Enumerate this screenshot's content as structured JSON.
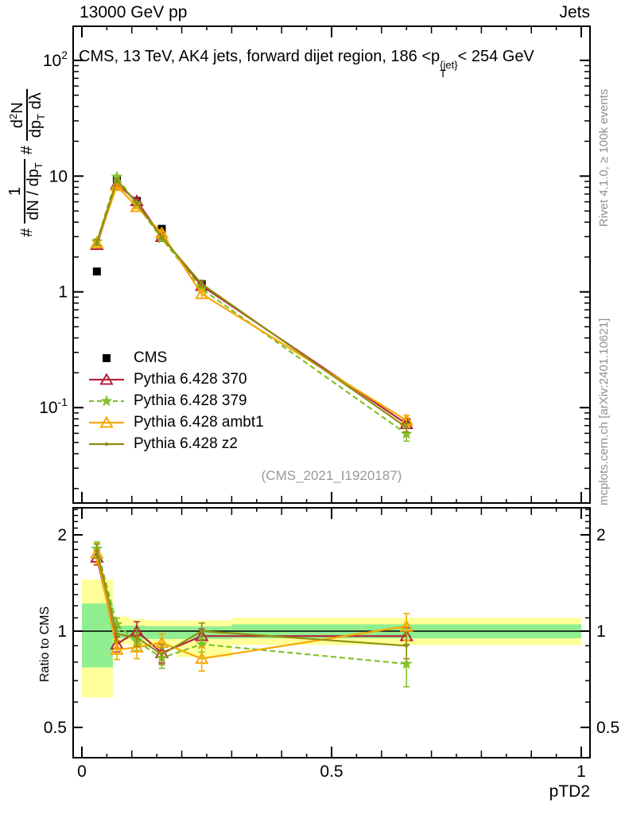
{
  "header": {
    "left": "13000 GeV pp",
    "right": "Jets"
  },
  "title": {
    "pre": "CMS, 13 TeV, AK4 jets, forward dijet region, 186 <",
    "p": "p",
    "sup": "{jet}",
    "sub": "T",
    "post": "< 254 GeV"
  },
  "ylabel_parts": {
    "h1": "#",
    "f1_num": "1",
    "f1_den": "dN / dp",
    "f1_den_sub": "T",
    "h2": "#",
    "f2_num_a": "d",
    "f2_num_sup": "2",
    "f2_num_b": "N",
    "f2_den_a": "dp",
    "f2_den_sub": "T",
    "f2_den_b": " dλ"
  },
  "side_texts": {
    "rivet": "Rivet 4.1.0, ≥ 100k events",
    "mcplots": "mcplots.cern.ch [arXiv:2401.10621]"
  },
  "watermark": "(CMS_2021_I1920187)",
  "ratio_ylabel": "Ratio to CMS",
  "xlabel": "pTD2",
  "chart_data": [
    {
      "id": "main",
      "type": "line",
      "title": "CMS, 13 TeV, AK4 jets, forward dijet region, 186 < pT^{jet} < 254 GeV",
      "xlabel": "pTD2",
      "ylabel": "# 1/(dN/dpT) # d^2N/(dpT dlambda)",
      "yscale": "log",
      "xlim": [
        -0.0175,
        1.0175
      ],
      "ylim": [
        0.015,
        197
      ],
      "grid": false,
      "legend_position": "center-left",
      "x": [
        0.03,
        0.07,
        0.11,
        0.16,
        0.24,
        0.65
      ],
      "series": [
        {
          "name": "CMS",
          "color": "#000000",
          "marker": "square",
          "line": "none",
          "values": [
            1.5,
            9.4,
            6.1,
            3.5,
            1.17,
            0.075
          ]
        },
        {
          "name": "Pythia 6.428 370",
          "color": "#b5233c",
          "marker": "triangle-open",
          "line": "solid",
          "values": [
            2.55,
            8.55,
            6.1,
            2.99,
            1.13,
            0.0724
          ],
          "yerr": [
            0.15,
            0.28,
            0.2,
            0.1,
            0.06,
            0.006
          ]
        },
        {
          "name": "Pythia 6.428 379",
          "color": "#82c22c",
          "marker": "star",
          "line": "dashed",
          "values": [
            2.72,
            9.87,
            5.67,
            2.89,
            1.06,
            0.0593
          ],
          "yerr": [
            0.15,
            0.3,
            0.2,
            0.1,
            0.06,
            0.008
          ]
        },
        {
          "name": "Pythia 6.428 ambt1",
          "color": "#f7a800",
          "marker": "triangle-open",
          "line": "solid",
          "values": [
            2.63,
            8.23,
            5.43,
            3.22,
            0.96,
            0.0776
          ],
          "yerr": [
            0.2,
            0.3,
            0.2,
            0.12,
            0.08,
            0.008
          ]
        },
        {
          "name": "Pythia 6.428 z2",
          "color": "#8f8f10",
          "marker": "dot",
          "line": "solid",
          "values": [
            2.67,
            9.21,
            5.83,
            2.96,
            1.17,
            0.0675
          ],
          "yerr": [
            0.15,
            0.3,
            0.2,
            0.1,
            0.07,
            0.006
          ]
        }
      ],
      "ytick_labels": [
        {
          "v": 100,
          "base": "10",
          "exp": "2"
        },
        {
          "v": 10,
          "base": "10"
        },
        {
          "v": 1,
          "base": "1"
        },
        {
          "v": 0.1,
          "base": "10",
          "exp": "-1"
        }
      ],
      "xtick_labels": [
        {
          "v": 0,
          "label": "0"
        },
        {
          "v": 0.5,
          "label": "0.5"
        },
        {
          "v": 1,
          "label": "1"
        }
      ]
    },
    {
      "id": "ratio",
      "type": "line",
      "ylabel": "Ratio to CMS",
      "yscale": "log",
      "xlim": [
        -0.0175,
        1.0175
      ],
      "ylim": [
        0.402,
        2.43
      ],
      "reference_line": 1,
      "band_colors": {
        "yellow": "#ffff99",
        "green": "#90ee90"
      },
      "bands": [
        {
          "x0": 0.0,
          "x1": 0.062,
          "yellow": [
            0.62,
            1.45
          ],
          "green": [
            0.77,
            1.22
          ]
        },
        {
          "x0": 0.062,
          "x1": 0.094,
          "yellow": [
            0.91,
            1.11
          ],
          "green": [
            0.95,
            1.04
          ]
        },
        {
          "x0": 0.094,
          "x1": 0.128,
          "yellow": [
            0.9,
            1.09
          ],
          "green": [
            0.945,
            1.04
          ]
        },
        {
          "x0": 0.128,
          "x1": 0.19,
          "yellow": [
            0.9,
            1.08
          ],
          "green": [
            0.945,
            1.035
          ]
        },
        {
          "x0": 0.19,
          "x1": 0.3,
          "yellow": [
            0.83,
            1.08
          ],
          "green": [
            0.945,
            1.035
          ]
        },
        {
          "x0": 0.3,
          "x1": 1.0,
          "yellow": [
            0.905,
            1.1
          ],
          "green": [
            0.95,
            1.05
          ]
        }
      ],
      "x": [
        0.03,
        0.07,
        0.11,
        0.16,
        0.24,
        0.65
      ],
      "series": [
        {
          "name": "Pythia 6.428 370",
          "color": "#b5233c",
          "marker": "triangle-open",
          "line": "solid",
          "values": [
            1.7,
            0.91,
            1.0,
            0.855,
            0.965,
            0.965
          ],
          "yerr": [
            0.09,
            0.05,
            0.07,
            0.06,
            0.05,
            0.06
          ]
        },
        {
          "name": "Pythia 6.428 379",
          "color": "#82c22c",
          "marker": "star",
          "line": "dashed",
          "values": [
            1.81,
            1.05,
            0.93,
            0.825,
            0.91,
            0.79
          ],
          "yerr": [
            0.09,
            0.05,
            0.06,
            0.06,
            0.05,
            0.12
          ]
        },
        {
          "name": "Pythia 6.428 ambt1",
          "color": "#f7a800",
          "marker": "triangle-open",
          "line": "solid",
          "values": [
            1.75,
            0.875,
            0.89,
            0.92,
            0.82,
            1.035
          ],
          "yerr": [
            0.13,
            0.06,
            0.07,
            0.06,
            0.07,
            0.1
          ]
        },
        {
          "name": "Pythia 6.428 z2",
          "color": "#8f8f10",
          "marker": "dot",
          "line": "solid",
          "values": [
            1.78,
            0.98,
            0.955,
            0.845,
            1.0,
            0.9
          ],
          "yerr": [
            0.09,
            0.05,
            0.06,
            0.06,
            0.06,
            0.08
          ]
        }
      ],
      "ytick_labels": [
        {
          "v": 2,
          "label": "2"
        },
        {
          "v": 1,
          "label": "1"
        },
        {
          "v": 0.5,
          "label": "0.5"
        }
      ],
      "xtick_labels": [
        {
          "v": 0,
          "label": "0"
        },
        {
          "v": 0.5,
          "label": "0.5"
        },
        {
          "v": 1,
          "label": "1"
        }
      ]
    }
  ]
}
